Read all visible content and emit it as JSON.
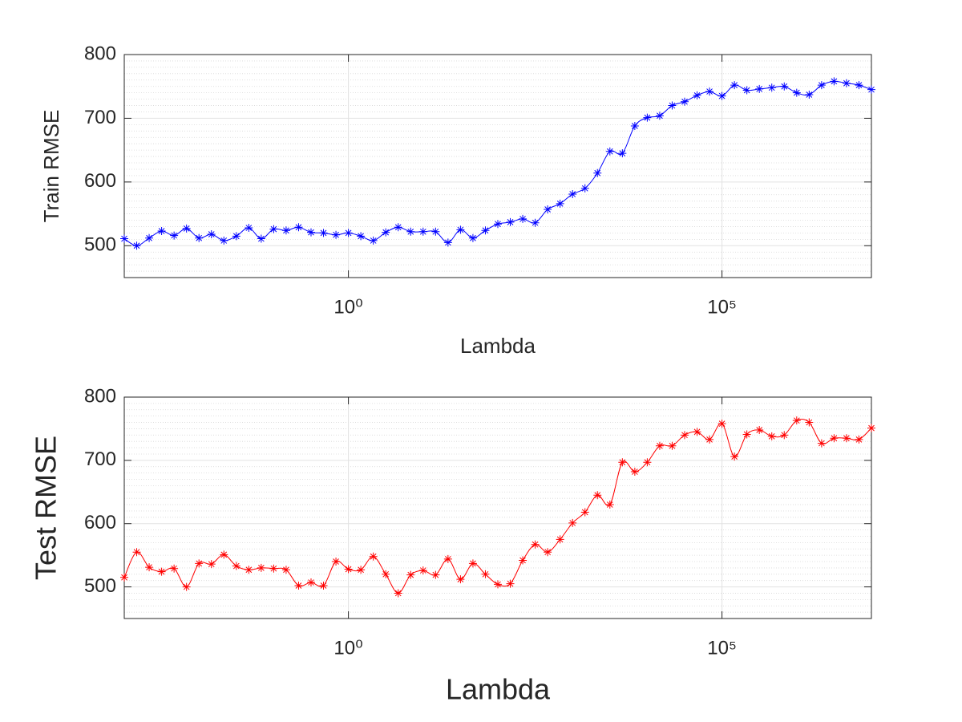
{
  "chart_data": [
    {
      "type": "line",
      "xlabel": "Lambda",
      "ylabel": "Train RMSE",
      "xscale": "log",
      "grid": true,
      "minor_grid": true,
      "marker": "asterisk",
      "color": "#0000ff",
      "xlim": [
        0.001,
        10000000
      ],
      "ylim": [
        450,
        800
      ],
      "xticks": [
        {
          "value": 1,
          "label": "10⁰"
        },
        {
          "value": 100000,
          "label": "10⁵"
        }
      ],
      "yticks": [
        500,
        600,
        700,
        800
      ],
      "x": [
        0.001,
        0.001468,
        0.002154,
        0.003162,
        0.004642,
        0.006813,
        0.01,
        0.01468,
        0.02154,
        0.03162,
        0.04642,
        0.06813,
        0.1,
        0.1468,
        0.2154,
        0.3162,
        0.4642,
        0.6813,
        1,
        1.468,
        2.154,
        3.162,
        4.642,
        6.813,
        10,
        14.68,
        21.54,
        31.62,
        46.42,
        68.13,
        100,
        146.8,
        215.4,
        316.2,
        464.2,
        681.3,
        1000,
        1468,
        2154,
        3162,
        4642,
        6813,
        10000,
        14680,
        21540,
        31620,
        46420,
        68130,
        100000,
        146800,
        215400,
        316200,
        464200,
        681300,
        1000000,
        1468000,
        2154000,
        3162000,
        4642000,
        6813000,
        10000000
      ],
      "values": [
        511,
        500,
        512,
        523,
        516,
        527,
        512,
        518,
        508,
        515,
        528,
        511,
        526,
        524,
        529,
        521,
        520,
        517,
        520,
        515,
        508,
        521,
        529,
        522,
        522,
        522,
        505,
        525,
        512,
        524,
        534,
        537,
        542,
        536,
        557,
        566,
        581,
        590,
        614,
        648,
        645,
        688,
        701,
        704,
        720,
        726,
        736,
        742,
        735,
        752,
        744,
        746,
        748,
        750,
        740,
        737,
        752,
        758,
        755,
        752,
        745
      ]
    },
    {
      "type": "line",
      "xlabel": "Lambda",
      "ylabel": "Test RMSE",
      "xscale": "log",
      "grid": true,
      "minor_grid": true,
      "marker": "asterisk",
      "color": "#ff0000",
      "xlim": [
        0.001,
        10000000
      ],
      "ylim": [
        450,
        800
      ],
      "xticks": [
        {
          "value": 1,
          "label": "10⁰"
        },
        {
          "value": 100000,
          "label": "10⁵"
        }
      ],
      "yticks": [
        500,
        600,
        700,
        800
      ],
      "x": [
        0.001,
        0.001468,
        0.002154,
        0.003162,
        0.004642,
        0.006813,
        0.01,
        0.01468,
        0.02154,
        0.03162,
        0.04642,
        0.06813,
        0.1,
        0.1468,
        0.2154,
        0.3162,
        0.4642,
        0.6813,
        1,
        1.468,
        2.154,
        3.162,
        4.642,
        6.813,
        10,
        14.68,
        21.54,
        31.62,
        46.42,
        68.13,
        100,
        146.8,
        215.4,
        316.2,
        464.2,
        681.3,
        1000,
        1468,
        2154,
        3162,
        4642,
        6813,
        10000,
        14680,
        21540,
        31620,
        46420,
        68130,
        100000,
        146800,
        215400,
        316200,
        464200,
        681300,
        1000000,
        1468000,
        2154000,
        3162000,
        4642000,
        6813000,
        10000000
      ],
      "values": [
        515,
        555,
        531,
        524,
        529,
        500,
        537,
        536,
        551,
        533,
        527,
        530,
        529,
        527,
        502,
        507,
        502,
        540,
        528,
        527,
        548,
        520,
        490,
        519,
        526,
        519,
        544,
        512,
        537,
        520,
        504,
        505,
        542,
        567,
        555,
        575,
        601,
        618,
        645,
        630,
        697,
        682,
        697,
        723,
        723,
        740,
        745,
        733,
        758,
        706,
        741,
        748,
        738,
        740,
        763,
        760,
        727,
        735,
        735,
        733,
        751
      ]
    }
  ]
}
